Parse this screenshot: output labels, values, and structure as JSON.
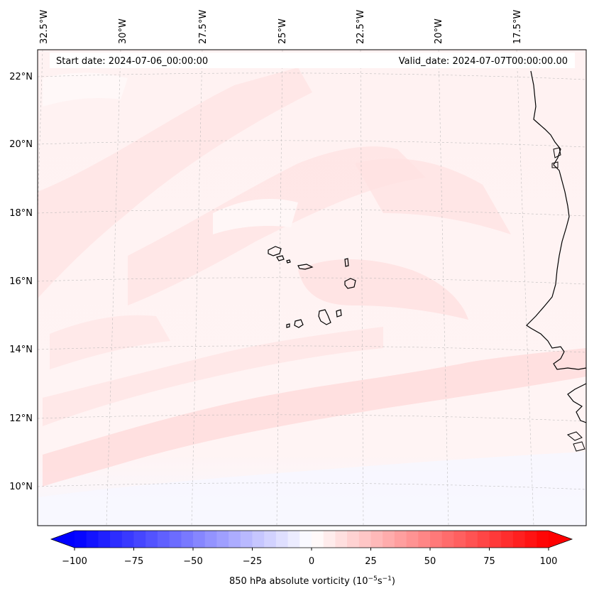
{
  "header": {
    "start_date": "Start date: 2024-07-06_00:00:00",
    "valid_date": "Valid_date: 2024-07-07T00:00:00.00"
  },
  "map": {
    "lon_labels": [
      "32.5°W",
      "30°W",
      "27.5°W",
      "25°W",
      "22.5°W",
      "20°W",
      "17.5°W"
    ],
    "lat_labels": [
      "22°N",
      "20°N",
      "18°N",
      "16°N",
      "14°N",
      "12°N",
      "10°N"
    ],
    "islands": [
      "Santo Antão",
      "São Vicente",
      "Santa Luzia",
      "São Nicolau",
      "Sal",
      "Boa Vista",
      "Maio",
      "Santiago",
      "Fogo",
      "Brava"
    ],
    "colors": {
      "frame": "#000000",
      "grid": "#b0b0b0",
      "coast": "#000000"
    }
  },
  "colorbar": {
    "label": "850 hPa absolute vorticity (10",
    "label_exp1": "−5",
    "label_mid": "s",
    "label_exp2": "−1",
    "label_end": ")",
    "ticks": [
      "−100",
      "−75",
      "−50",
      "−25",
      "0",
      "25",
      "50",
      "75",
      "100"
    ],
    "vmin": -100,
    "vmax": 100,
    "step": 5,
    "cmap": "bwr",
    "extend": "both"
  }
}
